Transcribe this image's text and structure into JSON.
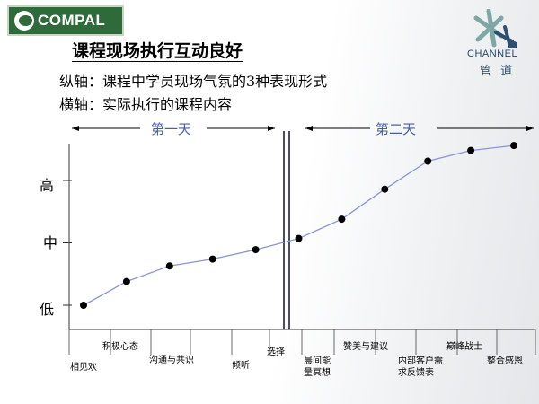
{
  "header": {
    "left_logo_text": "COMPAL",
    "right_logo_en": "CHANNEL",
    "right_logo_cn": "管 道"
  },
  "slide": {
    "title": "课程现场执行互动良好",
    "subtitle_y": "纵轴：课程中学员现场气氛的3种表现形式",
    "subtitle_x": "横轴：实际执行的课程内容"
  },
  "chart_data": {
    "type": "line",
    "title": "课程现场执行互动良好",
    "y_levels": [
      "低",
      "中",
      "高"
    ],
    "periods": [
      "第一天",
      "第二天"
    ],
    "categories": [
      "相见欢",
      "积极心态",
      "沟通与共识",
      "",
      "倾听",
      "选择",
      "晨间能量冥想",
      "赞美与建议",
      "内部客户需求反馈表",
      "巅峰战士",
      "整合感恩"
    ],
    "category_labels": [
      {
        "text": "相见欢",
        "lines": [
          "相见欢"
        ]
      },
      {
        "text": "积极心态",
        "lines": [
          "积极心态"
        ]
      },
      {
        "text": "沟通与共识",
        "lines": [
          "沟通与共识"
        ]
      },
      {
        "text": "倾听",
        "lines": [
          "倾听"
        ]
      },
      {
        "text": "选择",
        "lines": [
          "选择"
        ]
      },
      {
        "text": "晨间能量冥想",
        "lines": [
          "晨间能",
          "量冥想"
        ]
      },
      {
        "text": "赞美与建议",
        "lines": [
          "赞美与建议"
        ]
      },
      {
        "text": "内部客户需求反馈表",
        "lines": [
          "内部客户需",
          "求反馈表"
        ]
      },
      {
        "text": "巅峰战士",
        "lines": [
          "巅峰战士"
        ]
      },
      {
        "text": "整合感恩",
        "lines": [
          "整合感恩"
        ]
      }
    ],
    "series": [
      {
        "name": "",
        "points": [
          {
            "x": 0,
            "y": 0.0
          },
          {
            "x": 1,
            "y": 0.38
          },
          {
            "x": 2,
            "y": 0.63
          },
          {
            "x": 3,
            "y": 0.74
          },
          {
            "x": 4,
            "y": 0.89
          },
          {
            "x": 5,
            "y": 1.07
          },
          {
            "x": 6,
            "y": 1.38
          },
          {
            "x": 7,
            "y": 1.86
          },
          {
            "x": 8,
            "y": 2.31
          },
          {
            "x": 9,
            "y": 2.48
          },
          {
            "x": 10,
            "y": 2.56
          }
        ]
      }
    ],
    "colors": {
      "line": "#8b95d6",
      "marker": "#000000",
      "day_label": "#4a5fa8",
      "divider": "#4a4a7a"
    },
    "grid": false
  }
}
